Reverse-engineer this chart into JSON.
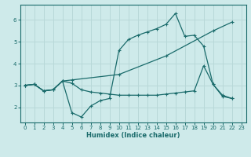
{
  "title": "",
  "xlabel": "Humidex (Indice chaleur)",
  "ylabel": "",
  "bg_color": "#ceeaea",
  "grid_color": "#b8d8d8",
  "line_color": "#1a6b6b",
  "xlim": [
    -0.5,
    23.5
  ],
  "ylim": [
    1.3,
    6.7
  ],
  "yticks": [
    2,
    3,
    4,
    5,
    6
  ],
  "xticks": [
    0,
    1,
    2,
    3,
    4,
    5,
    6,
    7,
    8,
    9,
    10,
    11,
    12,
    13,
    14,
    15,
    16,
    17,
    18,
    19,
    20,
    21,
    22,
    23
  ],
  "lines": [
    {
      "x": [
        0,
        1,
        2,
        3,
        4,
        5,
        10,
        15,
        20,
        22
      ],
      "y": [
        3.0,
        3.05,
        2.75,
        2.8,
        3.2,
        3.25,
        3.5,
        4.35,
        5.5,
        5.9
      ]
    },
    {
      "x": [
        0,
        1,
        2,
        3,
        4,
        5,
        6,
        7,
        8,
        9,
        10,
        11,
        12,
        13,
        14,
        15,
        16,
        17,
        18,
        19,
        20,
        21,
        22
      ],
      "y": [
        3.0,
        3.05,
        2.75,
        2.8,
        3.2,
        1.75,
        1.55,
        2.05,
        2.3,
        2.4,
        4.6,
        5.1,
        5.3,
        5.45,
        5.6,
        5.8,
        6.3,
        5.25,
        5.3,
        4.8,
        3.05,
        2.55,
        2.4
      ]
    },
    {
      "x": [
        0,
        1,
        2,
        3,
        4,
        5,
        6,
        7,
        8,
        9,
        10,
        11,
        12,
        13,
        14,
        15,
        16,
        17,
        18,
        19,
        20,
        21,
        22
      ],
      "y": [
        3.0,
        3.05,
        2.75,
        2.8,
        3.2,
        3.1,
        2.8,
        2.7,
        2.65,
        2.6,
        2.55,
        2.55,
        2.55,
        2.55,
        2.55,
        2.6,
        2.65,
        2.7,
        2.75,
        3.9,
        3.05,
        2.5,
        2.4
      ]
    }
  ]
}
